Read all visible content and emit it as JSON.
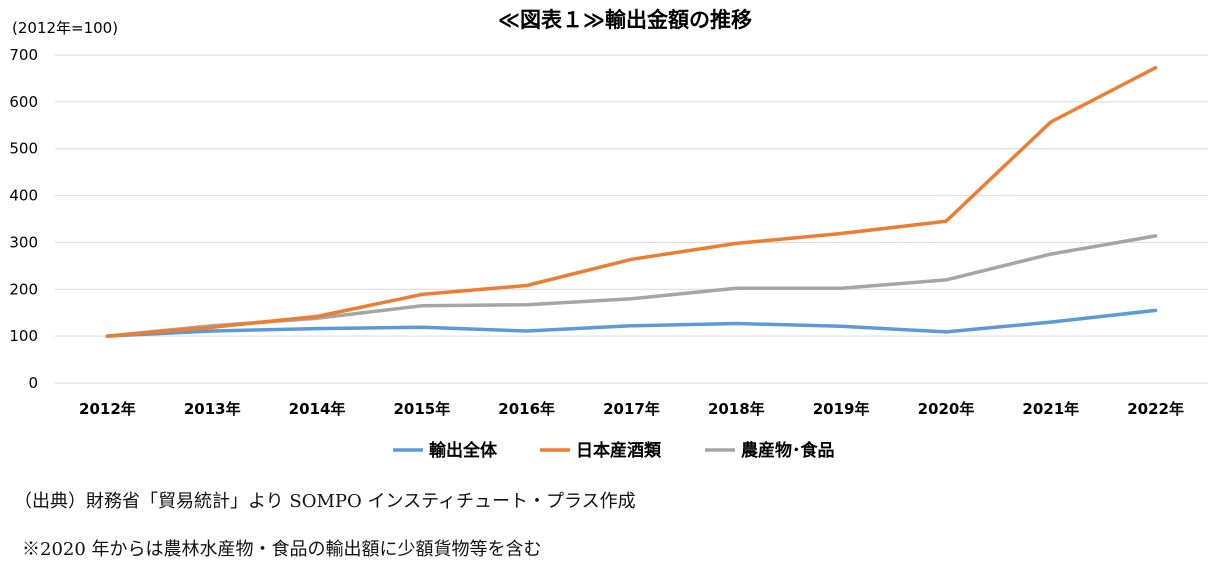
{
  "chart_data": {
    "type": "line",
    "title": "≪図表１≫輸出金額の推移",
    "unit_label": "(2012年=100)",
    "categories": [
      "2012年",
      "2013年",
      "2014年",
      "2015年",
      "2016年",
      "2017年",
      "2018年",
      "2019年",
      "2020年",
      "2021年",
      "2022年"
    ],
    "series": [
      {
        "name": "輸出全体",
        "color": "#5b9bd5",
        "values": [
          100,
          111,
          116,
          119,
          111,
          122,
          127,
          121,
          109,
          130,
          155
        ]
      },
      {
        "name": "日本産酒類",
        "color": "#ed7d31",
        "values": [
          100,
          119,
          142,
          189,
          208,
          264,
          298,
          319,
          345,
          557,
          673
        ]
      },
      {
        "name": "農産物･食品",
        "color": "#a5a5a5",
        "values": [
          100,
          122,
          138,
          165,
          167,
          180,
          202,
          202,
          220,
          275,
          314
        ]
      }
    ],
    "yticks": [
      "0",
      "100",
      "200",
      "300",
      "400",
      "500",
      "600",
      "700"
    ],
    "ylim": [
      0,
      700
    ],
    "grid": true,
    "legend_position": "bottom"
  },
  "notes": {
    "source": "（出典）財務省「貿易統計」より SOMPO インスティチュート・プラス作成",
    "footnote": "※2020 年からは農林水産物・食品の輸出額に少額貨物等を含む"
  }
}
